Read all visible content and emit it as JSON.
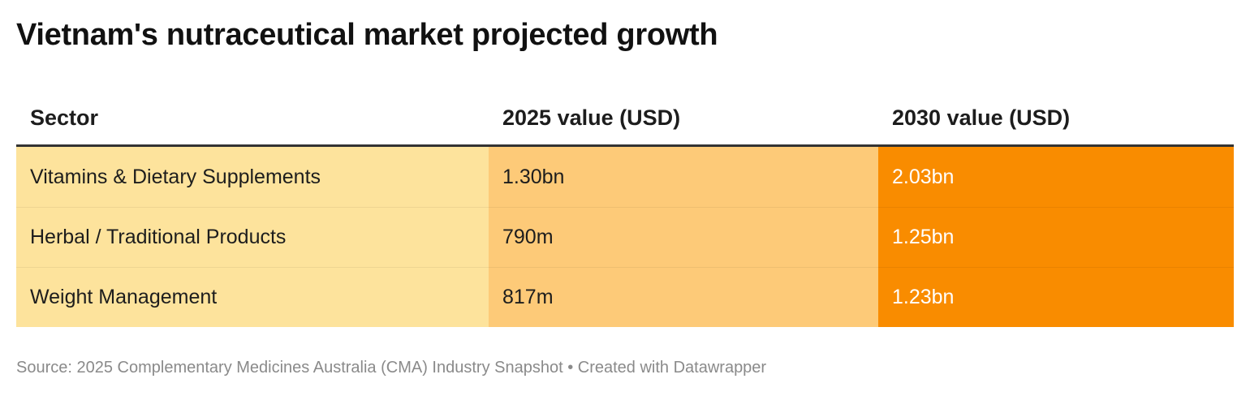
{
  "title": "Vietnam's nutraceutical market projected growth",
  "source": "Source: 2025 Complementary Medicines Australia (CMA) Industry Snapshot • Created with Datawrapper",
  "colors": {
    "col_sector": "#fde39c",
    "col_2025": "#fdca78",
    "col_2030": "#f98c00",
    "header_rule": "#333333"
  },
  "chart_data": {
    "type": "table",
    "columns": [
      "Sector",
      "2025 value (USD)",
      "2030 value (USD)"
    ],
    "rows": [
      [
        "Vitamins & Dietary Supplements",
        "1.30bn",
        "2.03bn"
      ],
      [
        "Herbal / Traditional Products",
        "790m",
        "1.25bn"
      ],
      [
        "Weight Management",
        "817m",
        "1.23bn"
      ]
    ]
  }
}
